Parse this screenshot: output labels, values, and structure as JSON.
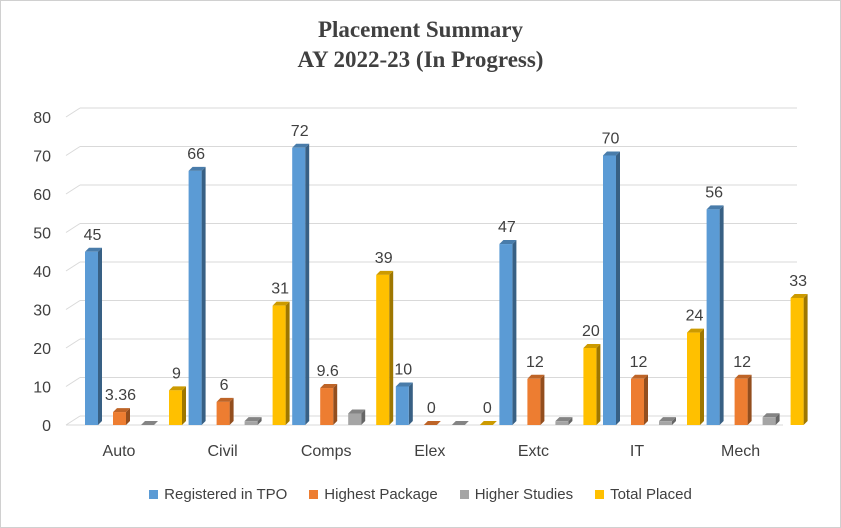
{
  "chart_data": {
    "type": "bar",
    "title": "Placement Summary",
    "subtitle": "AY 2022-23 (In Progress)",
    "categories": [
      "Auto",
      "Civil",
      "Comps",
      "Elex",
      "Extc",
      "IT",
      "Mech"
    ],
    "ylim": [
      0,
      80
    ],
    "yticks": [
      0,
      10,
      20,
      30,
      40,
      50,
      60,
      70,
      80
    ],
    "grid": true,
    "legend_position": "bottom",
    "series": [
      {
        "name": "Registered in TPO",
        "color": "#5B9BD5",
        "values": [
          45,
          66,
          72,
          10,
          47,
          70,
          56
        ],
        "labels": [
          "45",
          "66",
          "72",
          "10",
          "47",
          "70",
          "56"
        ]
      },
      {
        "name": "Highest Package",
        "color": "#ED7D31",
        "values": [
          3.36,
          6,
          9.6,
          0,
          12,
          12,
          12
        ],
        "labels": [
          "3.36",
          "6",
          "9.6",
          "0",
          "12",
          "12",
          "12"
        ]
      },
      {
        "name": "Higher Studies",
        "color": "#A5A5A5",
        "values": [
          0,
          1,
          3,
          0,
          1,
          1,
          2
        ],
        "labels": [
          null,
          null,
          null,
          null,
          null,
          null,
          null
        ]
      },
      {
        "name": "Total Placed",
        "color": "#FFC000",
        "values": [
          9,
          31,
          39,
          0,
          20,
          24,
          33
        ],
        "labels": [
          "9",
          "31",
          "39",
          "0",
          "20",
          "24",
          "33"
        ]
      }
    ]
  }
}
